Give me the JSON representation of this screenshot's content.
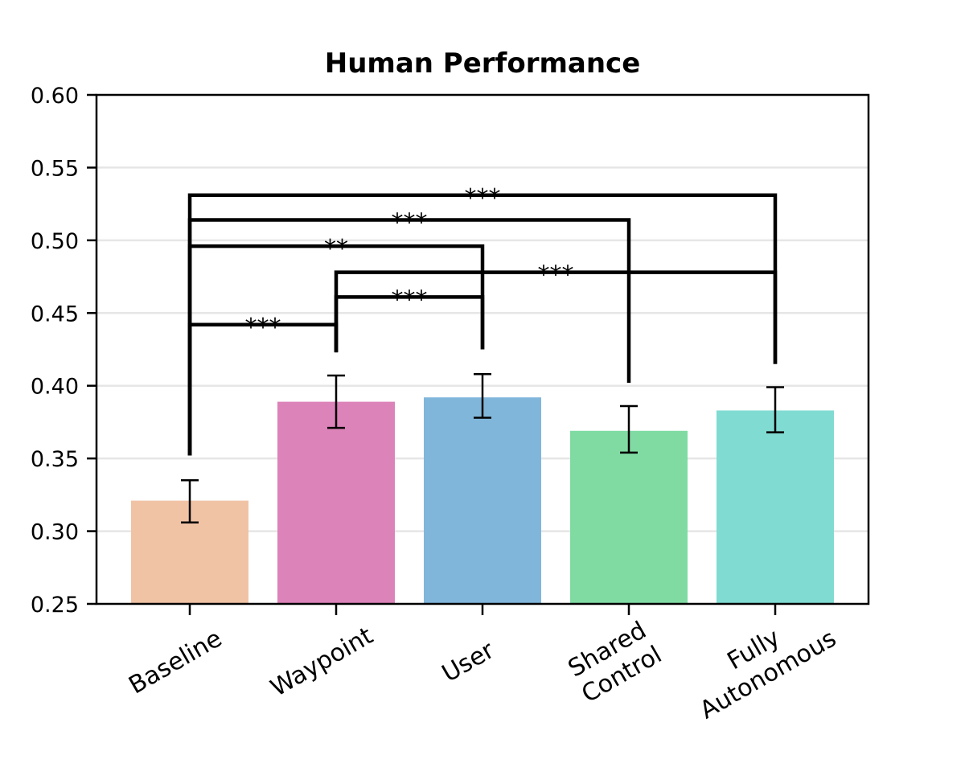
{
  "chart_data": {
    "type": "bar",
    "title": "Human Performance",
    "xlabel": "",
    "ylabel": "",
    "ylim": [
      0.25,
      0.6
    ],
    "yticks": [
      "0.25",
      "0.30",
      "0.35",
      "0.40",
      "0.45",
      "0.50",
      "0.55",
      "0.60"
    ],
    "grid": "horizontal",
    "categories": [
      {
        "label": [
          "Baseline"
        ],
        "value": 0.321,
        "err_low": 0.306,
        "err_high": 0.335,
        "color": "#F0C3A5"
      },
      {
        "label": [
          "Waypoint"
        ],
        "value": 0.389,
        "err_low": 0.371,
        "err_high": 0.407,
        "color": "#DC83B9"
      },
      {
        "label": [
          "User"
        ],
        "value": 0.392,
        "err_low": 0.378,
        "err_high": 0.408,
        "color": "#81B6DB"
      },
      {
        "label": [
          "Shared",
          "Control"
        ],
        "value": 0.369,
        "err_low": 0.354,
        "err_high": 0.386,
        "color": "#80DBA2"
      },
      {
        "label": [
          "Fully",
          "Autonomous"
        ],
        "value": 0.383,
        "err_low": 0.368,
        "err_high": 0.399,
        "color": "#80DBD2"
      }
    ],
    "significance": [
      {
        "from": 0,
        "to": 4,
        "y": 0.531,
        "left_end": 0.352,
        "right_end": 0.415,
        "label": "***"
      },
      {
        "from": 0,
        "to": 3,
        "y": 0.514,
        "left_end": 0.352,
        "right_end": 0.402,
        "label": "***"
      },
      {
        "from": 0,
        "to": 2,
        "y": 0.496,
        "left_end": 0.352,
        "right_end": 0.425,
        "label": "**"
      },
      {
        "from": 1,
        "to": 4,
        "y": 0.478,
        "left_end": 0.423,
        "right_end": 0.415,
        "label": "***"
      },
      {
        "from": 1,
        "to": 2,
        "y": 0.461,
        "left_end": 0.423,
        "right_end": 0.425,
        "label": "***"
      },
      {
        "from": 0,
        "to": 1,
        "y": 0.442,
        "left_end": 0.352,
        "right_end": 0.423,
        "label": "***"
      }
    ]
  }
}
